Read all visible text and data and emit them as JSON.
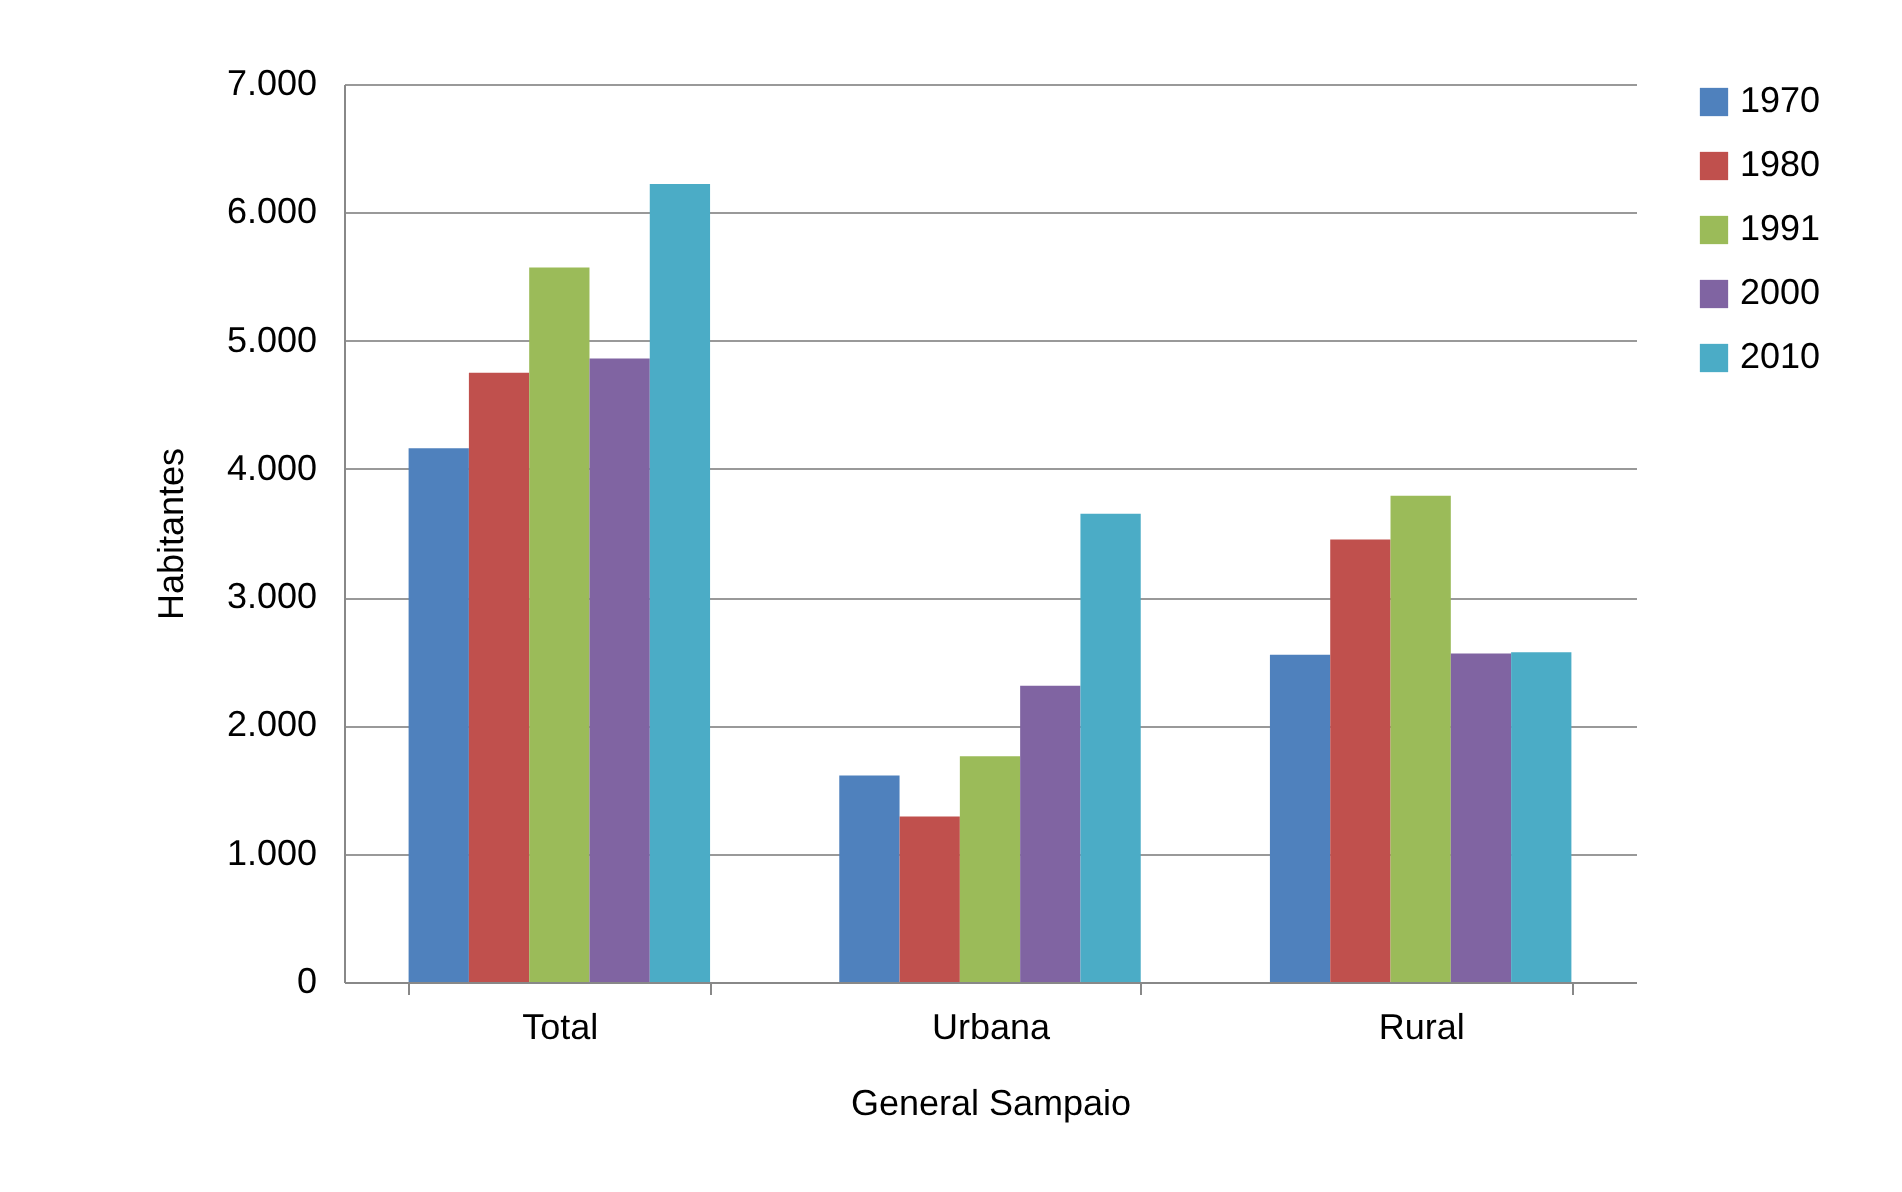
{
  "chart_data": {
    "type": "bar",
    "categories": [
      "Total",
      "Urbana",
      "Rural"
    ],
    "xlabel": "General Sampaio",
    "ylabel": "Habitantes",
    "series": [
      {
        "name": "1970",
        "color": "#4f81bd",
        "values": [
          4160,
          1610,
          2550
        ]
      },
      {
        "name": "1980",
        "color": "#c0504d",
        "values": [
          4750,
          1290,
          3450
        ]
      },
      {
        "name": "1991",
        "color": "#9bbb59",
        "values": [
          5570,
          1760,
          3790
        ]
      },
      {
        "name": "2000",
        "color": "#8064a2",
        "values": [
          4860,
          2310,
          2560
        ]
      },
      {
        "name": "2010",
        "color": "#4bacc6",
        "values": [
          6220,
          3650,
          2570
        ]
      }
    ],
    "ylim": [
      0,
      7000
    ],
    "yticks": [
      0,
      {
        "value": 1000,
        "label": "1.000"
      },
      {
        "value": 2000,
        "label": "2.000"
      },
      {
        "value": 3000,
        "label": "3.000"
      },
      {
        "value": 4000,
        "label": "4.000"
      },
      {
        "value": 5000,
        "label": "5.000"
      },
      {
        "value": 6000,
        "label": "6.000"
      },
      {
        "value": 7000,
        "label": "7.000"
      }
    ],
    "grid": "y",
    "legend": "right"
  }
}
